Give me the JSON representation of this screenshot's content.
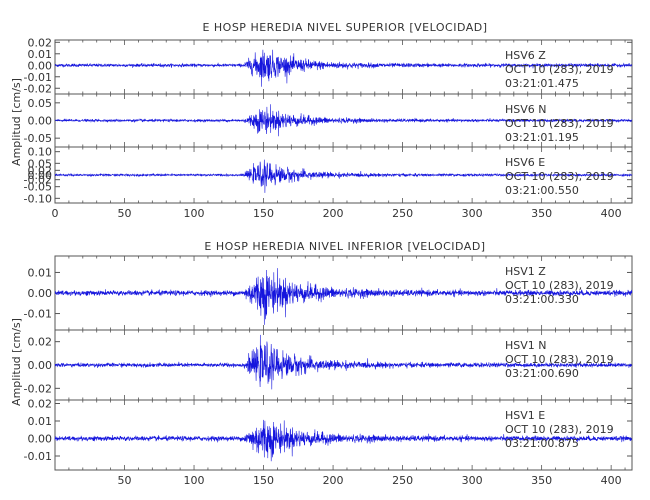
{
  "colors": {
    "trace": "#1515dd",
    "frame": "#555555",
    "text": "#333333"
  },
  "chart_data": [
    {
      "type": "line",
      "title": "E HOSP HEREDIA NIVEL SUPERIOR [VELOCIDAD]",
      "ylabel": "Amplitud [cm/s]",
      "xlim": [
        0,
        415
      ],
      "x_ticks": [
        0,
        50,
        100,
        150,
        200,
        250,
        300,
        350,
        400
      ],
      "x_tick_labels": [
        "0",
        "50",
        "100",
        "150",
        "200",
        "250",
        "300",
        "350",
        "400"
      ],
      "event_onset": 136,
      "peak_time": 150,
      "panels": [
        {
          "name": "HSV6 Z",
          "label": [
            "HSV6    Z",
            "OCT 10 (283), 2019",
            "03:21:01.475"
          ],
          "ylim": [
            -0.025,
            0.022
          ],
          "y_ticks": [
            0.02,
            0.01,
            0.0,
            -0.01,
            -0.02
          ],
          "y_tick_labels": [
            "0.02",
            "0.01",
            "0.00",
            "-0.01",
            "-0.02"
          ],
          "noise": 0.0012,
          "peak": 0.02
        },
        {
          "name": "HSV6 N",
          "label": [
            "HSV6    N",
            "OCT 10 (283), 2019",
            "03:21:01.195"
          ],
          "ylim": [
            -0.075,
            0.075
          ],
          "y_ticks": [
            0.05,
            0.0,
            -0.05
          ],
          "y_tick_labels": [
            "0.05",
            "0.00",
            "-0.05"
          ],
          "noise": 0.003,
          "peak": 0.055
        },
        {
          "name": "HSV6 E",
          "label": [
            "HSV6    E",
            "OCT 10 (283), 2019",
            "03:21:00.550"
          ],
          "ylim": [
            -0.12,
            0.12
          ],
          "y_ticks": [
            0.1,
            0.05,
            0.02,
            0.0,
            -0.02,
            -0.05,
            -0.1
          ],
          "y_tick_labels": [
            "0.10",
            "0.05",
            "0.02",
            "0.00",
            "-0.02",
            "-0.05",
            "-0.10"
          ],
          "noise": 0.004,
          "peak": 0.08
        }
      ]
    },
    {
      "type": "line",
      "title": "E HOSP HEREDIA NIVEL INFERIOR [VELOCIDAD]",
      "ylabel": "Amplitud [cm/s]",
      "xlim": [
        0,
        415
      ],
      "x_ticks": [
        50,
        100,
        150,
        200,
        250,
        300,
        350,
        400
      ],
      "x_tick_labels": [
        "50",
        "100",
        "150",
        "200",
        "250",
        "300",
        "350",
        "400"
      ],
      "event_onset": 136,
      "peak_time": 150,
      "panels": [
        {
          "name": "HSV1 Z",
          "label": [
            "HSV1    Z",
            "OCT 10 (283), 2019",
            "03:21:00.330"
          ],
          "ylim": [
            -0.018,
            0.018
          ],
          "y_ticks": [
            0.01,
            0.0,
            -0.01
          ],
          "y_tick_labels": [
            "0.01",
            "0.00",
            "-0.01"
          ],
          "noise": 0.0011,
          "peak": 0.017
        },
        {
          "name": "HSV1 N",
          "label": [
            "HSV1    N",
            "OCT 10 (283), 2019",
            "03:21:00.690"
          ],
          "ylim": [
            -0.03,
            0.03
          ],
          "y_ticks": [
            0.02,
            0.0,
            -0.02
          ],
          "y_tick_labels": [
            "0.02",
            "0.00",
            "-0.02"
          ],
          "noise": 0.0015,
          "peak": 0.026
        },
        {
          "name": "HSV1 E",
          "label": [
            "HSV1    E",
            "OCT 10 (283), 2019",
            "03:21:00.875"
          ],
          "ylim": [
            -0.018,
            0.022
          ],
          "y_ticks": [
            0.02,
            0.01,
            0.0,
            -0.01
          ],
          "y_tick_labels": [
            "0.02",
            "0.01",
            "0.00",
            "-0.01"
          ],
          "noise": 0.0012,
          "peak": 0.017
        }
      ]
    }
  ]
}
